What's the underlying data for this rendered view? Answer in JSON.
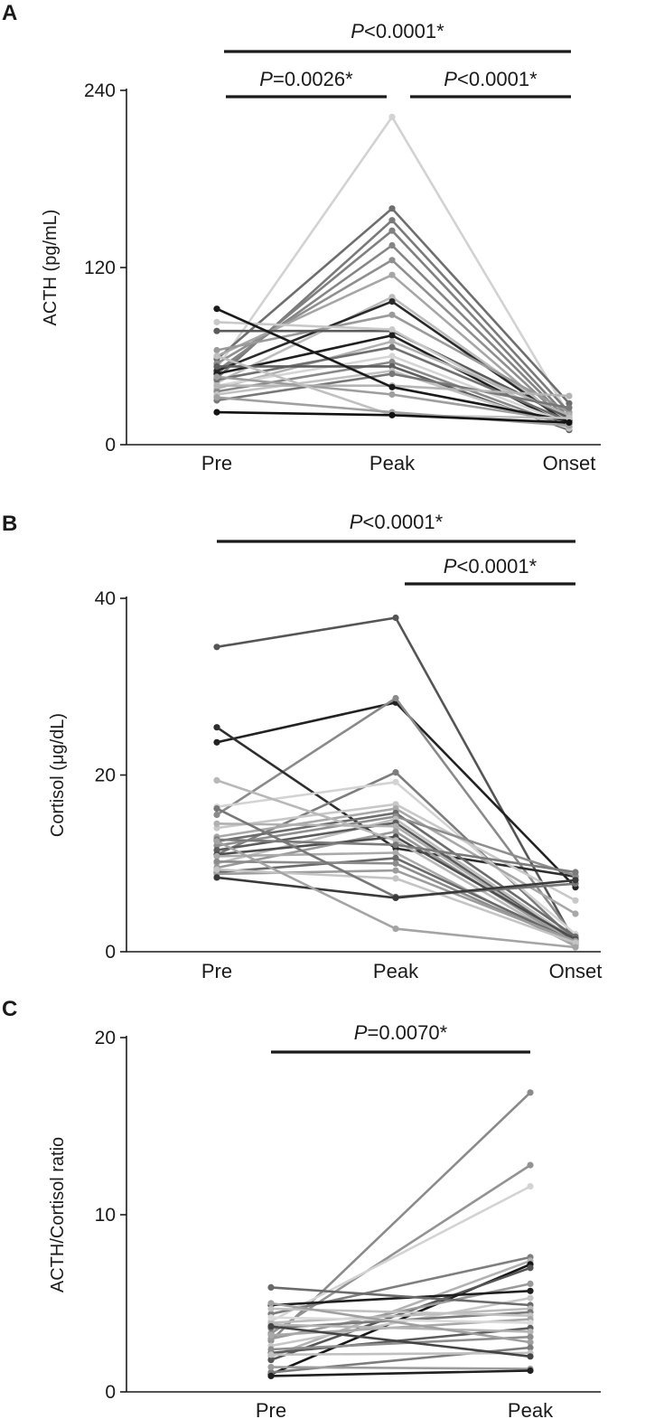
{
  "chart_data": [
    {
      "type": "line",
      "panel": "A",
      "ylabel": "ACTH (pg/mL)",
      "xlabel": "",
      "categories": [
        "Pre",
        "Peak",
        "Onset"
      ],
      "ylim": [
        0,
        240
      ],
      "yticks": [
        0,
        120,
        240
      ],
      "ytick_labels": [
        "0",
        "120",
        "240"
      ],
      "significance": [
        {
          "from": 0,
          "to": 1,
          "label_italic": "P",
          "label_rest": "=0.0026*"
        },
        {
          "from": 1,
          "to": 2,
          "label_italic": "P",
          "label_rest": "<0.0001*"
        },
        {
          "from": 0,
          "to": 2,
          "label_italic": "P",
          "label_rest": "<0.0001*"
        }
      ],
      "series": [
        {
          "color": "#d2d2d2",
          "values": [
            52,
            222,
            20
          ]
        },
        {
          "color": "#6e6e6e",
          "values": [
            58,
            160,
            28
          ]
        },
        {
          "color": "#7a7a7a",
          "values": [
            45,
            152,
            22
          ]
        },
        {
          "color": "#808080",
          "values": [
            48,
            145,
            18
          ]
        },
        {
          "color": "#858585",
          "values": [
            50,
            135,
            16
          ]
        },
        {
          "color": "#8f8f8f",
          "values": [
            55,
            125,
            14
          ]
        },
        {
          "color": "#a6a6a6",
          "values": [
            60,
            115,
            12
          ]
        },
        {
          "color": "#bcbcbc",
          "values": [
            42,
            100,
            15
          ]
        },
        {
          "color": "#2a2a2a",
          "values": [
            50,
            97,
            14
          ]
        },
        {
          "color": "#9a9a9a",
          "values": [
            64,
            88,
            22
          ]
        },
        {
          "color": "#5a5a5a",
          "values": [
            77,
            77,
            18
          ]
        },
        {
          "color": "#c8c8c8",
          "values": [
            83,
            78,
            13
          ]
        },
        {
          "color": "#1f1f1f",
          "values": [
            48,
            74,
            12
          ]
        },
        {
          "color": "#b2b2b2",
          "values": [
            38,
            70,
            20
          ]
        },
        {
          "color": "#707070",
          "values": [
            44,
            66,
            16
          ]
        },
        {
          "color": "#d5d5d5",
          "values": [
            40,
            60,
            14
          ]
        },
        {
          "color": "#898989",
          "values": [
            36,
            56,
            12
          ]
        },
        {
          "color": "#5e5e5e",
          "values": [
            53,
            53,
            10
          ]
        },
        {
          "color": "#c2c2c2",
          "values": [
            34,
            50,
            11
          ]
        },
        {
          "color": "#777777",
          "values": [
            30,
            48,
            25
          ]
        },
        {
          "color": "#b5b5b5",
          "values": [
            40,
            40,
            33
          ]
        },
        {
          "color": "#9e9e9e",
          "values": [
            46,
            34,
            16
          ]
        },
        {
          "color": "#1a1a1a",
          "values": [
            92,
            39,
            16
          ]
        },
        {
          "color": "#c0c0c0",
          "values": [
            60,
            20,
            18
          ]
        },
        {
          "color": "#a0a0a0",
          "values": [
            32,
            22,
            13
          ]
        },
        {
          "color": "#121212",
          "values": [
            22,
            20,
            15
          ]
        }
      ]
    },
    {
      "type": "line",
      "panel": "B",
      "ylabel": "Cortisol (μg/dL)",
      "xlabel": "",
      "categories": [
        "Pre",
        "Peak",
        "Onset"
      ],
      "ylim": [
        0,
        40
      ],
      "yticks": [
        0,
        20,
        40
      ],
      "ytick_labels": [
        "0",
        "20",
        "40"
      ],
      "significance": [
        {
          "from": 1,
          "to": 2,
          "label_italic": "P",
          "label_rest": "<0.0001*"
        },
        {
          "from": 0,
          "to": 2,
          "label_italic": "P",
          "label_rest": "<0.0001*"
        }
      ],
      "series": [
        {
          "color": "#555555",
          "values": [
            34.5,
            37.8,
            1.0
          ]
        },
        {
          "color": "#222222",
          "values": [
            23.7,
            28.2,
            7.3
          ]
        },
        {
          "color": "#8a8a8a",
          "values": [
            15.5,
            28.7,
            1.5
          ]
        },
        {
          "color": "#2e2e2e",
          "values": [
            25.4,
            11.7,
            8.5
          ]
        },
        {
          "color": "#7d7d7d",
          "values": [
            11.0,
            20.3,
            1.2
          ]
        },
        {
          "color": "#d3d3d3",
          "values": [
            16.4,
            19.2,
            2.0
          ]
        },
        {
          "color": "#c8c8c8",
          "values": [
            14.0,
            16.7,
            5.8
          ]
        },
        {
          "color": "#a8a8a8",
          "values": [
            13.0,
            16.2,
            4.3
          ]
        },
        {
          "color": "#6c6c6c",
          "values": [
            12.5,
            15.7,
            1.7
          ]
        },
        {
          "color": "#8e8e8e",
          "values": [
            12.0,
            15.3,
            8.6
          ]
        },
        {
          "color": "#bdbdbd",
          "values": [
            10.0,
            15.0,
            1.3
          ]
        },
        {
          "color": "#5c5c5c",
          "values": [
            11.5,
            14.6,
            1.0
          ]
        },
        {
          "color": "#b0b0b0",
          "values": [
            14.5,
            14.2,
            0.9
          ]
        },
        {
          "color": "#989898",
          "values": [
            9.5,
            13.6,
            0.8
          ]
        },
        {
          "color": "#4e4e4e",
          "values": [
            11.0,
            13.0,
            1.4
          ]
        },
        {
          "color": "#b8b8b8",
          "values": [
            19.4,
            12.6,
            0.7
          ]
        },
        {
          "color": "#7a7a7a",
          "values": [
            12.7,
            12.1,
            9.0
          ]
        },
        {
          "color": "#aaaaaa",
          "values": [
            10.8,
            11.2,
            0.6
          ]
        },
        {
          "color": "#6a6a6a",
          "values": [
            9.0,
            10.6,
            1.1
          ]
        },
        {
          "color": "#8c8c8c",
          "values": [
            10.2,
            10.0,
            0.9
          ]
        },
        {
          "color": "#9c9c9c",
          "values": [
            8.8,
            9.2,
            1.2
          ]
        },
        {
          "color": "#c4c4c4",
          "values": [
            9.3,
            8.3,
            1.0
          ]
        },
        {
          "color": "#777777",
          "values": [
            16.2,
            6.2,
            7.7
          ]
        },
        {
          "color": "#3a3a3a",
          "values": [
            8.4,
            6.1,
            8.1
          ]
        },
        {
          "color": "#a4a4a4",
          "values": [
            12.5,
            2.6,
            0.5
          ]
        }
      ]
    },
    {
      "type": "line",
      "panel": "C",
      "ylabel": "ACTH/Cortisol ratio",
      "xlabel": "",
      "categories": [
        "Pre",
        "Peak"
      ],
      "ylim": [
        0,
        20
      ],
      "yticks": [
        0,
        10,
        20
      ],
      "ytick_labels": [
        "0",
        "10",
        "20"
      ],
      "significance": [
        {
          "from": 0,
          "to": 1,
          "label_italic": "P",
          "label_rest": "=0.0070*"
        }
      ],
      "series": [
        {
          "color": "#8a8a8a",
          "values": [
            2.9,
            16.9
          ]
        },
        {
          "color": "#939393",
          "values": [
            3.3,
            12.8
          ]
        },
        {
          "color": "#d3d3d3",
          "values": [
            4.0,
            11.6
          ]
        },
        {
          "color": "#7e7e7e",
          "values": [
            4.4,
            7.6
          ]
        },
        {
          "color": "#b2b2b2",
          "values": [
            2.0,
            7.4
          ]
        },
        {
          "color": "#161616",
          "values": [
            1.0,
            7.2
          ]
        },
        {
          "color": "#555555",
          "values": [
            1.8,
            7.0
          ]
        },
        {
          "color": "#9a9a9a",
          "values": [
            3.0,
            6.1
          ]
        },
        {
          "color": "#1e1e1e",
          "values": [
            4.9,
            5.7
          ]
        },
        {
          "color": "#c7c7c7",
          "values": [
            2.6,
            5.3
          ]
        },
        {
          "color": "#6a6a6a",
          "values": [
            5.9,
            4.9
          ]
        },
        {
          "color": "#bcbcbc",
          "values": [
            3.9,
            4.7
          ]
        },
        {
          "color": "#7a7a7a",
          "values": [
            3.6,
            4.5
          ]
        },
        {
          "color": "#c2c2c2",
          "values": [
            4.7,
            4.3
          ]
        },
        {
          "color": "#a8a8a8",
          "values": [
            3.2,
            4.1
          ]
        },
        {
          "color": "#dadada",
          "values": [
            4.2,
            3.9
          ]
        },
        {
          "color": "#5c5c5c",
          "values": [
            2.2,
            3.6
          ]
        },
        {
          "color": "#b5b5b5",
          "values": [
            3.8,
            3.4
          ]
        },
        {
          "color": "#8e8e8e",
          "values": [
            2.4,
            3.1
          ]
        },
        {
          "color": "#a0a0a0",
          "values": [
            5.0,
            2.8
          ]
        },
        {
          "color": "#7d7d7d",
          "values": [
            1.1,
            2.5
          ]
        },
        {
          "color": "#c0c0c0",
          "values": [
            2.1,
            2.2
          ]
        },
        {
          "color": "#444444",
          "values": [
            3.7,
            2.0
          ]
        },
        {
          "color": "#9c9c9c",
          "values": [
            1.4,
            1.3
          ]
        },
        {
          "color": "#202020",
          "values": [
            0.9,
            1.2
          ]
        }
      ]
    }
  ]
}
